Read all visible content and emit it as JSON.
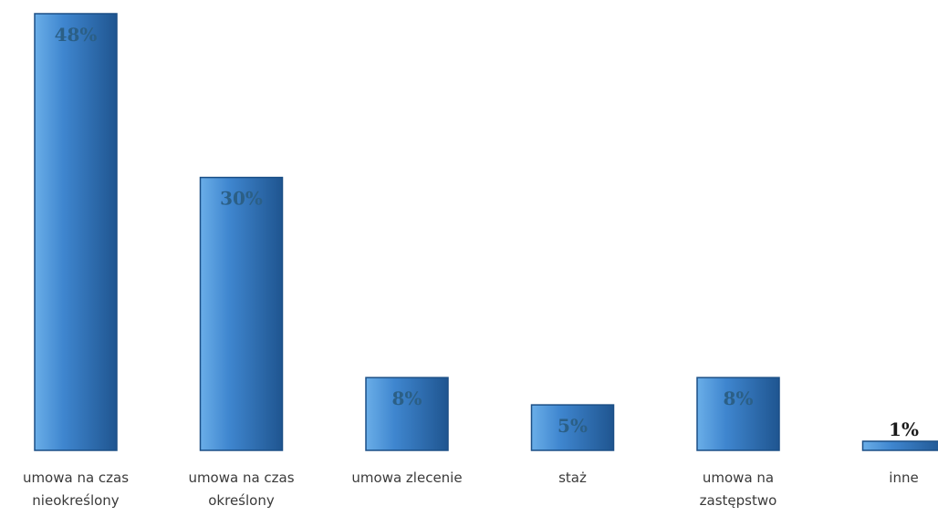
{
  "chart_data": {
    "type": "bar",
    "categories": [
      [
        "umowa na czas",
        "nieokreślony"
      ],
      [
        "umowa na czas",
        "określony"
      ],
      [
        "umowa zlecenie"
      ],
      [
        "staż"
      ],
      [
        "umowa na",
        "zastępstwo"
      ],
      [
        "inne"
      ]
    ],
    "values": [
      48,
      30,
      8,
      5,
      8,
      1
    ],
    "data_labels": [
      "48%",
      "30%",
      "8%",
      "5%",
      "8%",
      "1%"
    ],
    "ylim": [
      0,
      48
    ],
    "grid": false,
    "legend": "none",
    "title": "",
    "xlabel": "",
    "ylabel": ""
  },
  "colors": {
    "bar_fill": "#3f86cf",
    "bar_highlight": "#6aaee8",
    "bar_shadow": "#1f5590",
    "bar_edge": "#1b4f86",
    "label_inside": "#2b5f86",
    "label_outside": "#1a1a1a"
  }
}
